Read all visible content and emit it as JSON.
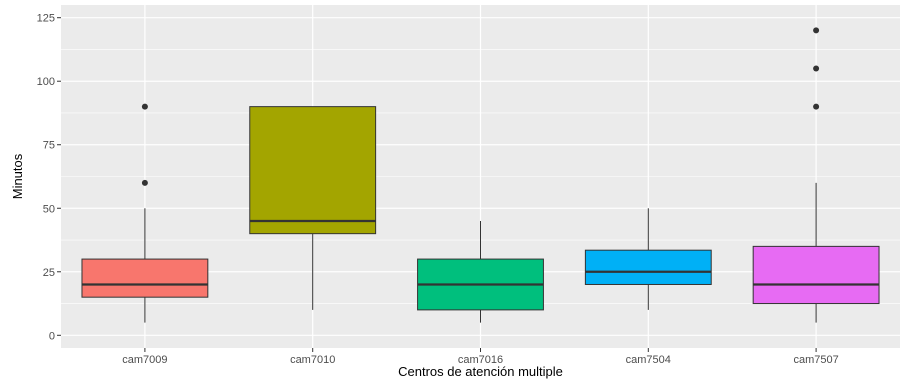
{
  "chart_data": {
    "type": "boxplot",
    "title": "",
    "xlabel": "Centros de atención multiple",
    "ylabel": "Minutos",
    "ylim": [
      0,
      125
    ],
    "yticks": [
      0,
      25,
      50,
      75,
      100,
      125
    ],
    "grid": true,
    "legend": "none",
    "categories": [
      "cam7009",
      "cam7010",
      "cam7016",
      "cam7504",
      "cam7507"
    ],
    "boxes": [
      {
        "category": "cam7009",
        "color": "#F8766D",
        "whisker_low": 5,
        "q1": 15,
        "median": 20,
        "q3": 30,
        "whisker_high": 50,
        "outliers": [
          60,
          90
        ]
      },
      {
        "category": "cam7010",
        "color": "#A3A500",
        "whisker_low": 10,
        "q1": 40,
        "median": 45,
        "q3": 90,
        "whisker_high": 90,
        "outliers": []
      },
      {
        "category": "cam7016",
        "color": "#00BF7D",
        "whisker_low": 5,
        "q1": 10,
        "median": 20,
        "q3": 30,
        "whisker_high": 45,
        "outliers": []
      },
      {
        "category": "cam7504",
        "color": "#00B0F6",
        "whisker_low": 10,
        "q1": 20,
        "median": 25,
        "q3": 33.5,
        "whisker_high": 50,
        "outliers": []
      },
      {
        "category": "cam7507",
        "color": "#E76BF3",
        "whisker_low": 5,
        "q1": 12.5,
        "median": 20,
        "q3": 35,
        "whisker_high": 60,
        "outliers": [
          90,
          105,
          120
        ]
      }
    ]
  }
}
